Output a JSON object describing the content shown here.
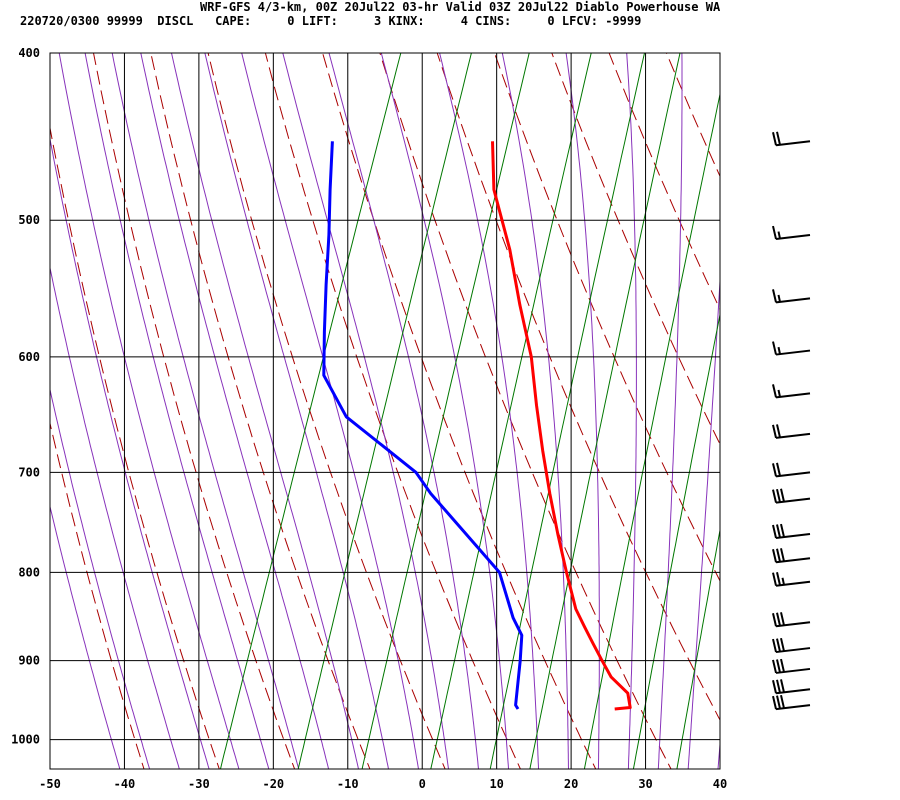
{
  "header": {
    "title": "WRF-GFS 4/3-km, 00Z 20Jul22 03-hr Valid 03Z 20Jul22 Diablo Powerhouse WA",
    "stats": "220720/0300 99999  DISCL   CAPE:     0 LIFT:     3 KINX:     4 CINS:     0 LFCV: -9999"
  },
  "colors": {
    "temperature": "#ff0000",
    "dewpoint": "#0000ff",
    "dry_adiabat": "#aa0000",
    "moist_adiabat": "#8833bb",
    "mixing_ratio": "#007700",
    "grid": "#000000"
  },
  "chart_data": {
    "type": "line",
    "subtype": "skew-t log-p",
    "xlim": [
      -50,
      40
    ],
    "ylim": [
      1040,
      400
    ],
    "y_scale": "log",
    "x_ticks": [
      "-50",
      "-40",
      "-30",
      "-20",
      "-10",
      "0",
      "10",
      "20",
      "30",
      "40"
    ],
    "y_ticks": [
      "400",
      "500",
      "600",
      "700",
      "800",
      "900",
      "1000"
    ],
    "grid": true,
    "series": [
      {
        "key": "temperature",
        "points": [
          [
            960,
            23
          ],
          [
            958,
            25
          ],
          [
            940,
            24
          ],
          [
            920,
            21
          ],
          [
            900,
            19
          ],
          [
            880,
            17
          ],
          [
            860,
            15
          ],
          [
            840,
            13
          ],
          [
            800,
            10
          ],
          [
            760,
            7
          ],
          [
            720,
            4
          ],
          [
            680,
            1
          ],
          [
            640,
            -2
          ],
          [
            600,
            -5
          ],
          [
            560,
            -9
          ],
          [
            520,
            -13
          ],
          [
            480,
            -18
          ],
          [
            450,
            -20.5
          ]
        ]
      },
      {
        "key": "dewpoint",
        "points": [
          [
            960,
            10
          ],
          [
            955,
            9.5
          ],
          [
            900,
            8
          ],
          [
            870,
            7
          ],
          [
            850,
            5
          ],
          [
            800,
            1
          ],
          [
            720,
            -12
          ],
          [
            700,
            -15
          ],
          [
            650,
            -27
          ],
          [
            615,
            -32
          ],
          [
            580,
            -34
          ],
          [
            545,
            -36
          ],
          [
            510,
            -38
          ],
          [
            480,
            -40
          ],
          [
            450,
            -42
          ]
        ]
      }
    ],
    "wind_barbs": [
      {
        "p": 450,
        "speed_kt": 20
      },
      {
        "p": 510,
        "speed_kt": 15
      },
      {
        "p": 555,
        "speed_kt": 15
      },
      {
        "p": 595,
        "speed_kt": 15
      },
      {
        "p": 630,
        "speed_kt": 15
      },
      {
        "p": 665,
        "speed_kt": 20
      },
      {
        "p": 700,
        "speed_kt": 20
      },
      {
        "p": 725,
        "speed_kt": 30
      },
      {
        "p": 760,
        "speed_kt": 30
      },
      {
        "p": 785,
        "speed_kt": 30
      },
      {
        "p": 810,
        "speed_kt": 25
      },
      {
        "p": 855,
        "speed_kt": 30
      },
      {
        "p": 885,
        "speed_kt": 30
      },
      {
        "p": 910,
        "speed_kt": 30
      },
      {
        "p": 935,
        "speed_kt": 30
      },
      {
        "p": 955,
        "speed_kt": 30
      }
    ]
  }
}
